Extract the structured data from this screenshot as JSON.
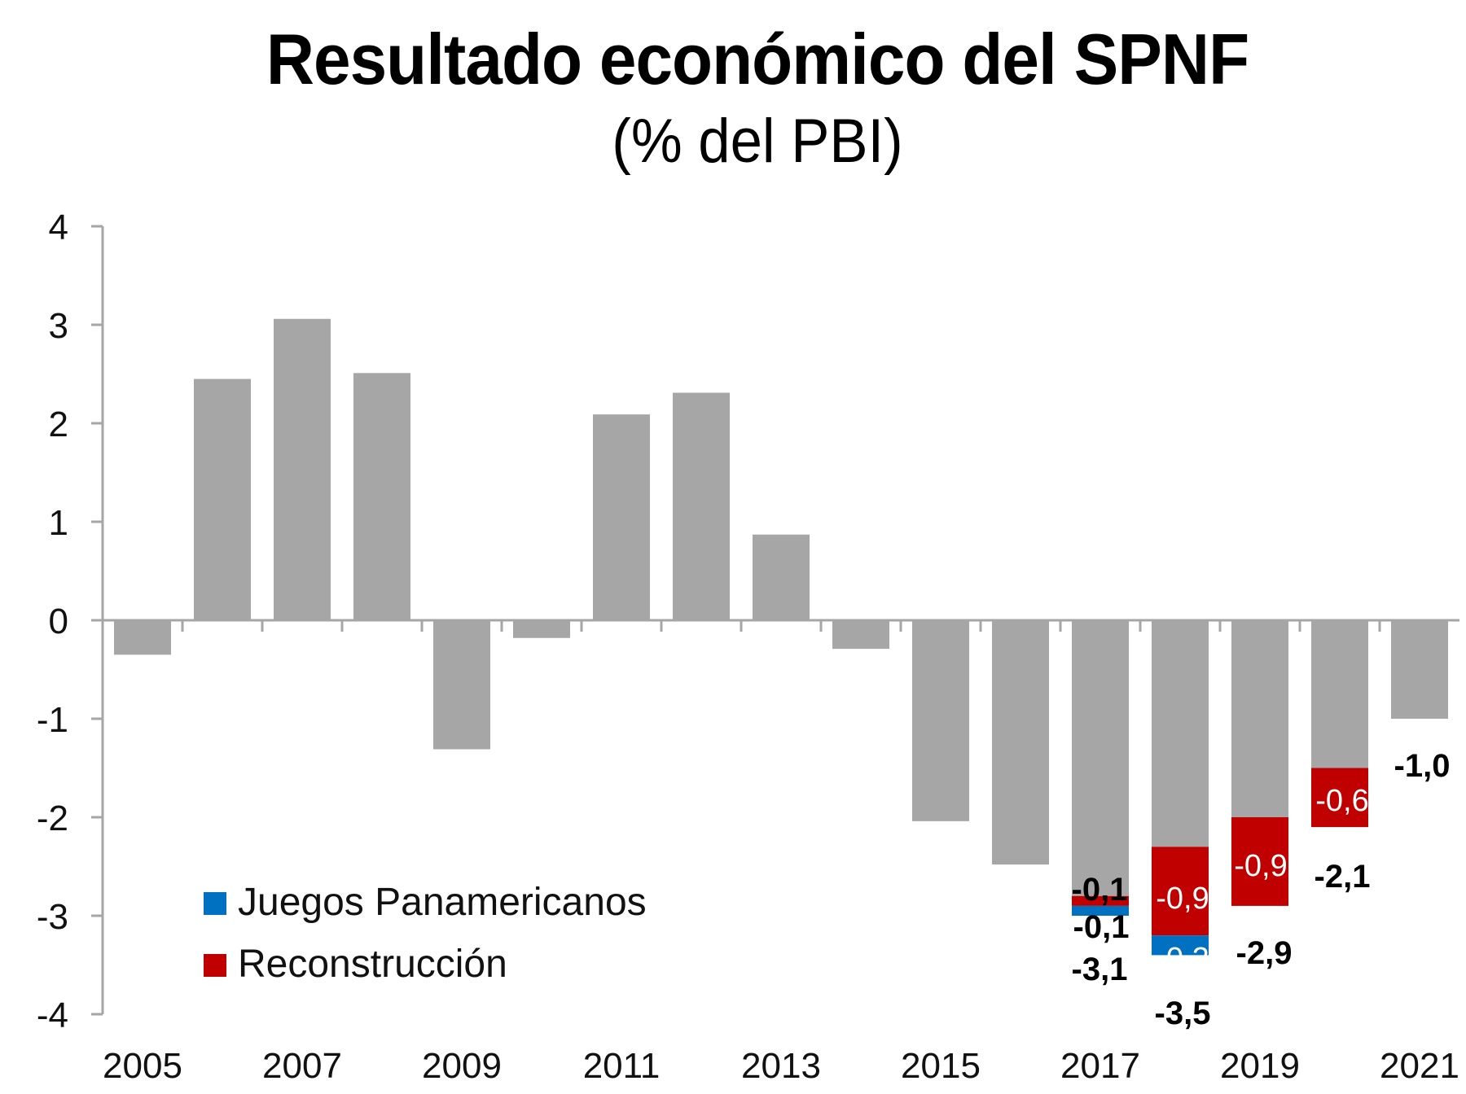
{
  "chart_data": {
    "type": "bar",
    "title": "Resultado económico del SPNF",
    "subtitle": "(% del PBI)",
    "x": [
      "2005",
      "2006",
      "2007",
      "2008",
      "2009",
      "2010",
      "2011",
      "2012",
      "2013",
      "2014",
      "2015",
      "2016",
      "2017",
      "2018",
      "2019",
      "2020",
      "2021"
    ],
    "x_tick_labels": [
      "2005",
      "2007",
      "2009",
      "2011",
      "2013",
      "2015",
      "2017",
      "2019",
      "2021"
    ],
    "y_tick_labels": [
      "4",
      "3",
      "2",
      "1",
      "0",
      "-1",
      "-2",
      "-3",
      "-4"
    ],
    "ylim": [
      -4,
      4
    ],
    "y_ticks": [
      4,
      3,
      2,
      1,
      0,
      -1,
      -2,
      -3,
      -4
    ],
    "grid": false,
    "legend_position": "bottom-left",
    "series": [
      {
        "values": [
          -0.35,
          2.45,
          3.06,
          2.51,
          -1.31,
          -0.18,
          2.09,
          2.31,
          0.87,
          -0.29,
          -2.04,
          -2.48,
          -2.8,
          -2.3,
          -2.0,
          -1.5,
          -1.0
        ]
      },
      {
        "name": "Reconstrucción",
        "values": [
          null,
          null,
          null,
          null,
          null,
          null,
          null,
          null,
          null,
          null,
          null,
          null,
          -0.1,
          -0.9,
          -0.9,
          -0.6,
          null
        ]
      },
      {
        "name": "Juegos Panamericanos",
        "values": [
          null,
          null,
          null,
          null,
          null,
          null,
          null,
          null,
          null,
          null,
          null,
          null,
          -0.1,
          -0.2,
          null,
          null,
          null
        ]
      }
    ],
    "data_labels": [
      {
        "year": "2017",
        "text": "-0,1",
        "series": "Reconstrucción"
      },
      {
        "year": "2017",
        "text": "-0,1",
        "series": "Juegos Panamericanos"
      },
      {
        "year": "2017",
        "text": "-3,1",
        "series": "total"
      },
      {
        "year": "2018",
        "text": "-0,9",
        "series": "Reconstrucción"
      },
      {
        "year": "2018",
        "text": "-0,2",
        "series": "Juegos Panamericanos"
      },
      {
        "year": "2018",
        "text": "-3,5",
        "series": "total"
      },
      {
        "year": "2019",
        "text": "-0,9",
        "series": "Reconstrucción"
      },
      {
        "year": "2019",
        "text": "-2,9",
        "series": "total"
      },
      {
        "year": "2020",
        "text": "-0,6",
        "series": "Reconstrucción"
      },
      {
        "year": "2020",
        "text": "-2,1",
        "series": "total"
      },
      {
        "year": "2021",
        "text": "-1,0",
        "series": "total"
      }
    ],
    "colors": {
      "base": "#a6a6a6",
      "Reconstrucción": "#c00000",
      "Juegos Panamericanos": "#0070c0",
      "axis": "#a6a6a6"
    }
  }
}
